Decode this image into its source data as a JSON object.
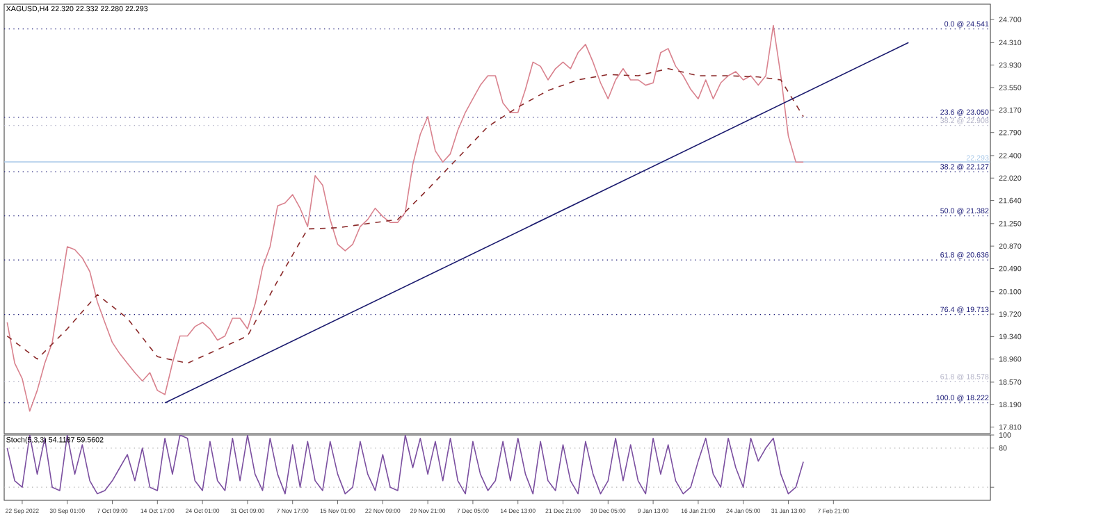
{
  "chart_data": [
    {
      "type": "line",
      "title": "XAGUSD,H4 22.320 22.332 22.280 22.293",
      "tick_labels": "y",
      "categories": [
        null,
        null,
        null,
        null,
        null,
        null,
        null,
        null,
        null,
        null,
        null,
        null,
        null,
        null,
        null,
        null,
        null,
        null,
        null,
        null,
        null,
        null,
        null,
        null,
        null,
        null,
        null,
        null,
        null,
        null,
        null,
        null,
        null,
        null,
        null,
        null,
        null,
        null,
        null,
        null,
        null,
        null,
        null,
        null,
        null,
        null,
        null,
        null,
        null,
        null,
        null,
        null,
        null,
        null,
        null,
        null,
        null,
        null,
        null,
        null,
        null,
        null,
        null,
        null,
        null,
        null,
        null,
        null,
        null,
        null,
        null,
        null,
        null,
        null,
        null,
        null,
        null,
        null,
        null,
        null,
        null,
        null,
        null,
        null,
        null,
        null,
        null,
        null,
        null,
        null,
        null,
        null,
        null,
        null,
        null,
        null,
        null,
        null,
        null,
        null,
        null,
        null,
        null,
        null,
        null,
        null,
        null,
        null,
        null,
        null,
        null,
        null,
        null,
        null,
        null,
        null,
        null,
        null,
        null,
        null,
        null,
        null,
        null,
        null,
        null,
        null,
        null,
        null,
        null,
        null,
        null
      ],
      "series": [
        {
          "color": "#d9828e",
          "values": [
            19.58,
            18.89,
            18.63,
            18.08,
            18.43,
            18.89,
            19.24,
            20.05,
            20.86,
            20.81,
            20.67,
            20.44,
            19.93,
            19.58,
            19.24,
            19.05,
            18.89,
            18.73,
            18.59,
            18.73,
            18.43,
            18.36,
            18.89,
            19.35,
            19.35,
            19.51,
            19.58,
            19.47,
            19.28,
            19.35,
            19.65,
            19.65,
            19.47,
            19.89,
            20.51,
            20.86,
            21.55,
            21.6,
            21.74,
            21.51,
            21.2,
            22.06,
            21.9,
            21.32,
            20.9,
            20.79,
            20.9,
            21.2,
            21.32,
            21.51,
            21.37,
            21.27,
            21.27,
            21.44,
            22.25,
            22.76,
            23.06,
            22.48,
            22.29,
            22.43,
            22.83,
            23.13,
            23.36,
            23.59,
            23.75,
            23.75,
            23.29,
            23.13,
            23.13,
            23.52,
            23.98,
            23.91,
            23.68,
            23.87,
            23.98,
            23.87,
            24.14,
            24.28,
            23.98,
            23.63,
            23.36,
            23.68,
            23.87,
            23.68,
            23.68,
            23.59,
            23.63,
            24.14,
            24.21,
            23.91,
            23.75,
            23.52,
            23.36,
            23.68,
            23.36,
            23.63,
            23.75,
            23.82,
            23.68,
            23.75,
            23.59,
            23.75,
            24.6,
            23.75,
            22.73,
            22.29,
            22.29,
            null,
            null,
            null,
            null,
            null,
            null,
            null,
            null,
            null,
            null,
            null,
            null,
            null,
            null,
            null,
            null,
            null,
            null,
            null,
            null,
            null,
            null,
            null,
            null
          ]
        },
        {
          "color": "#8b2a2a",
          "line_style": "dashed",
          "values": [
            19.35,
            null,
            null,
            null,
            18.96,
            null,
            null,
            null,
            19.47,
            null,
            null,
            null,
            20.05,
            null,
            null,
            null,
            19.65,
            null,
            null,
            null,
            19.0,
            null,
            null,
            null,
            18.89,
            null,
            null,
            null,
            19.12,
            null,
            null,
            null,
            19.35,
            null,
            null,
            null,
            20.28,
            null,
            null,
            null,
            21.16,
            null,
            null,
            null,
            21.18,
            null,
            null,
            null,
            21.25,
            null,
            null,
            null,
            21.32,
            null,
            null,
            null,
            21.83,
            null,
            null,
            null,
            22.36,
            null,
            null,
            null,
            22.89,
            null,
            null,
            null,
            23.22,
            null,
            null,
            null,
            23.5,
            null,
            null,
            null,
            23.68,
            null,
            null,
            null,
            23.77,
            null,
            null,
            null,
            23.75,
            null,
            null,
            null,
            23.87,
            null,
            null,
            null,
            23.75,
            null,
            null,
            null,
            23.75,
            null,
            null,
            null,
            23.73,
            null,
            null,
            23.68,
            null,
            null,
            23.06,
            null,
            null,
            null,
            null,
            null,
            null,
            null,
            null,
            null,
            null,
            null,
            null,
            null,
            null,
            null,
            null,
            null,
            null,
            null,
            null,
            null,
            null,
            null,
            null
          ]
        },
        {
          "color": "#1a1a6e",
          "values": [
            null,
            null,
            null,
            null,
            null,
            null,
            null,
            null,
            null,
            null,
            null,
            null,
            null,
            null,
            null,
            null,
            null,
            null,
            null,
            null,
            null,
            18.22,
            null,
            null,
            null,
            null,
            null,
            null,
            null,
            null,
            null,
            null,
            null,
            null,
            null,
            null,
            null,
            null,
            null,
            null,
            null,
            null,
            null,
            null,
            null,
            null,
            null,
            null,
            null,
            null,
            null,
            null,
            null,
            null,
            null,
            null,
            null,
            null,
            null,
            null,
            null,
            null,
            null,
            null,
            null,
            null,
            null,
            null,
            null,
            null,
            null,
            null,
            null,
            null,
            null,
            null,
            null,
            null,
            null,
            null,
            null,
            null,
            null,
            null,
            null,
            null,
            null,
            null,
            null,
            null,
            null,
            null,
            null,
            null,
            null,
            null,
            null,
            null,
            null,
            null,
            null,
            null,
            null,
            null,
            null,
            null,
            null,
            null,
            null,
            null,
            null,
            null,
            null,
            null,
            null,
            null,
            null,
            null,
            null,
            null,
            24.31,
            null,
            null,
            null,
            null,
            null,
            null,
            null,
            null,
            null,
            null
          ]
        }
      ],
      "ylim": [
        17.7,
        24.96
      ],
      "yticks": [
        {
          "value": 17.81,
          "label": "17.810"
        },
        {
          "value": 18.19,
          "label": "18.190"
        },
        {
          "value": 18.57,
          "label": "18.570"
        },
        {
          "value": 18.96,
          "label": "18.960"
        },
        {
          "value": 19.34,
          "label": "19.340"
        },
        {
          "value": 19.72,
          "label": "19.720"
        },
        {
          "value": 20.1,
          "label": "20.100"
        },
        {
          "value": 20.49,
          "label": "20.490"
        },
        {
          "value": 20.87,
          "label": "20.870"
        },
        {
          "value": 21.25,
          "label": "21.250"
        },
        {
          "value": 21.64,
          "label": "21.640"
        },
        {
          "value": 22.02,
          "label": "22.020"
        },
        {
          "value": 22.4,
          "label": "22.400"
        },
        {
          "value": 22.79,
          "label": "22.790"
        },
        {
          "value": 23.17,
          "label": "23.170"
        },
        {
          "value": 23.55,
          "label": "23.550"
        },
        {
          "value": 23.93,
          "label": "23.930"
        },
        {
          "value": 24.31,
          "label": "24.310"
        },
        {
          "value": 24.7,
          "label": "24.700"
        }
      ],
      "ref_lines": [
        {
          "axis": "y",
          "value": 24.541,
          "label": "0.0 @ 24.541",
          "color": "#1f1f7a",
          "line_style": "dotted"
        },
        {
          "axis": "y",
          "value": 23.05,
          "label": "23.6 @ 23.050",
          "color": "#1f1f7a",
          "line_style": "dotted"
        },
        {
          "axis": "y",
          "value": 22.908,
          "label": "38.2 @ 22.908",
          "color": "#b4b4c8",
          "line_style": "dotted"
        },
        {
          "axis": "y",
          "value": 22.293,
          "label": "22.293",
          "color": "#a8c8e8",
          "line_style": "solid"
        },
        {
          "axis": "y",
          "value": 22.127,
          "label": "38.2 @ 22.127",
          "color": "#1f1f7a",
          "line_style": "dotted"
        },
        {
          "axis": "y",
          "value": 21.382,
          "label": "50.0 @ 21.382",
          "color": "#1f1f7a",
          "line_style": "dotted"
        },
        {
          "axis": "y",
          "value": 20.636,
          "label": "61.8 @ 20.636",
          "color": "#1f1f7a",
          "line_style": "dotted"
        },
        {
          "axis": "y",
          "value": 19.713,
          "label": "76.4 @ 19.713",
          "color": "#1f1f7a",
          "line_style": "dotted"
        },
        {
          "axis": "y",
          "value": 18.578,
          "label": "61.8 @ 18.578",
          "color": "#b4b4c8",
          "line_style": "dotted"
        },
        {
          "axis": "y",
          "value": 18.222,
          "label": "100.0 @ 18.222",
          "color": "#1f1f7a",
          "line_style": "dotted"
        }
      ]
    },
    {
      "type": "line",
      "title": "Stoch(5,3,3) 54.1187 59.5602",
      "categories": [
        null,
        null,
        "22 Sep 2022",
        null,
        null,
        null,
        null,
        null,
        "30 Sep 01:00",
        null,
        null,
        null,
        null,
        null,
        "7 Oct 09:00",
        null,
        null,
        null,
        null,
        null,
        "14 Oct 17:00",
        null,
        null,
        null,
        null,
        null,
        "24 Oct 01:00",
        null,
        null,
        null,
        null,
        null,
        "31 Oct 09:00",
        null,
        null,
        null,
        null,
        null,
        "7 Nov 17:00",
        null,
        null,
        null,
        null,
        null,
        "15 Nov 01:00",
        null,
        null,
        null,
        null,
        null,
        "22 Nov 09:00",
        null,
        null,
        null,
        null,
        null,
        "29 Nov 21:00",
        null,
        null,
        null,
        null,
        null,
        "7 Dec 05:00",
        null,
        null,
        null,
        null,
        null,
        "14 Dec 13:00",
        null,
        null,
        null,
        null,
        null,
        "21 Dec 21:00",
        null,
        null,
        null,
        null,
        null,
        "30 Dec 05:00",
        null,
        null,
        null,
        null,
        null,
        "9 Jan 13:00",
        null,
        null,
        null,
        null,
        null,
        "16 Jan 21:00",
        null,
        null,
        null,
        null,
        null,
        "24 Jan 05:00",
        null,
        null,
        null,
        null,
        null,
        "31 Jan 13:00",
        null,
        null,
        null,
        null,
        null,
        "7 Feb 21:00",
        null,
        null,
        null,
        null,
        null,
        null,
        null,
        null,
        null,
        null,
        null,
        null,
        null,
        null,
        null,
        null,
        null,
        null,
        null,
        null
      ],
      "series": [
        {
          "color": "#7b4fa0",
          "values": [
            80,
            30,
            20,
            100,
            40,
            95,
            20,
            15,
            100,
            40,
            85,
            30,
            10,
            15,
            30,
            50,
            70,
            30,
            80,
            20,
            15,
            95,
            40,
            100,
            95,
            30,
            15,
            90,
            30,
            15,
            95,
            30,
            100,
            40,
            15,
            95,
            40,
            10,
            85,
            20,
            90,
            30,
            15,
            90,
            40,
            10,
            20,
            90,
            40,
            15,
            70,
            20,
            15,
            100,
            50,
            95,
            40,
            90,
            30,
            95,
            30,
            10,
            90,
            40,
            15,
            30,
            90,
            30,
            95,
            40,
            10,
            90,
            30,
            15,
            85,
            30,
            10,
            90,
            40,
            10,
            30,
            95,
            30,
            85,
            30,
            10,
            95,
            40,
            85,
            30,
            10,
            20,
            60,
            95,
            40,
            20,
            95,
            50,
            20,
            95,
            60,
            80,
            95,
            40,
            10,
            20,
            59,
            null,
            null,
            null,
            null,
            null,
            null,
            null,
            null,
            null,
            null,
            null,
            null,
            null,
            null,
            null,
            null,
            null,
            null,
            null,
            null,
            null,
            null,
            null,
            null
          ]
        }
      ],
      "ylim": [
        0,
        100
      ],
      "yticks": [
        100,
        80,
        {
          "value": 20,
          "label": null
        }
      ],
      "ref_lines": [
        {
          "axis": "y",
          "value": 80,
          "color": "#b0b0b0",
          "line_style": "dotted"
        },
        {
          "axis": "y",
          "value": 20,
          "color": "#b0b0b0",
          "line_style": "dotted"
        }
      ]
    }
  ]
}
